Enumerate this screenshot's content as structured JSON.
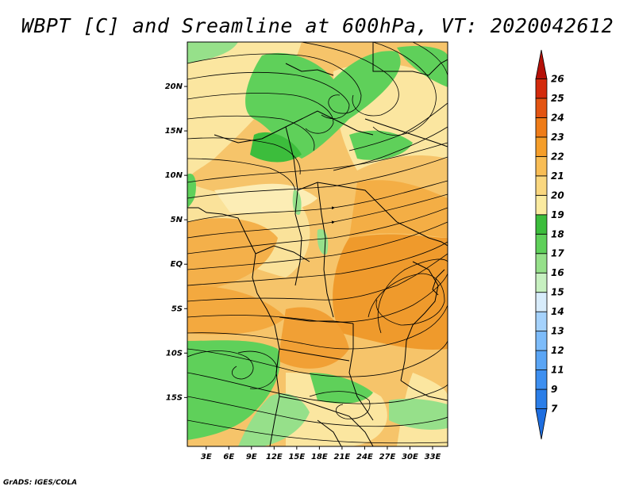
{
  "title": "WBPT [C] and Sreamline at 600hPa, VT: 2020042612",
  "credit": "GrADS: IGES/COLA",
  "map": {
    "lat_labels": [
      "20N",
      "15N",
      "10N",
      "5N",
      "EQ",
      "5S",
      "10S",
      "15S"
    ],
    "lat_values": [
      20,
      15,
      10,
      5,
      0,
      -5,
      -10,
      -15
    ],
    "lon_labels": [
      "3E",
      "6E",
      "9E",
      "12E",
      "15E",
      "18E",
      "21E",
      "24E",
      "27E",
      "30E",
      "33E"
    ],
    "lon_values": [
      3,
      6,
      9,
      12,
      15,
      18,
      21,
      24,
      27,
      30,
      33
    ]
  },
  "colorbar": {
    "labels": [
      "7",
      "9",
      "11",
      "12",
      "13",
      "14",
      "15",
      "16",
      "17",
      "18",
      "19",
      "20",
      "21",
      "22",
      "23",
      "24",
      "25",
      "26"
    ],
    "colors": [
      "#1e6ee0",
      "#2b7ee8",
      "#3d8ff0",
      "#5aa5f5",
      "#7dbcfa",
      "#a5d2fc",
      "#d8ecfb",
      "#c7f0c0",
      "#96e08a",
      "#5fd05a",
      "#3cbd3c",
      "#fbeba0",
      "#fad77f",
      "#f8bd55",
      "#f59e2a",
      "#ef7c18",
      "#e35412",
      "#d32a0c",
      "#b41008"
    ]
  }
}
